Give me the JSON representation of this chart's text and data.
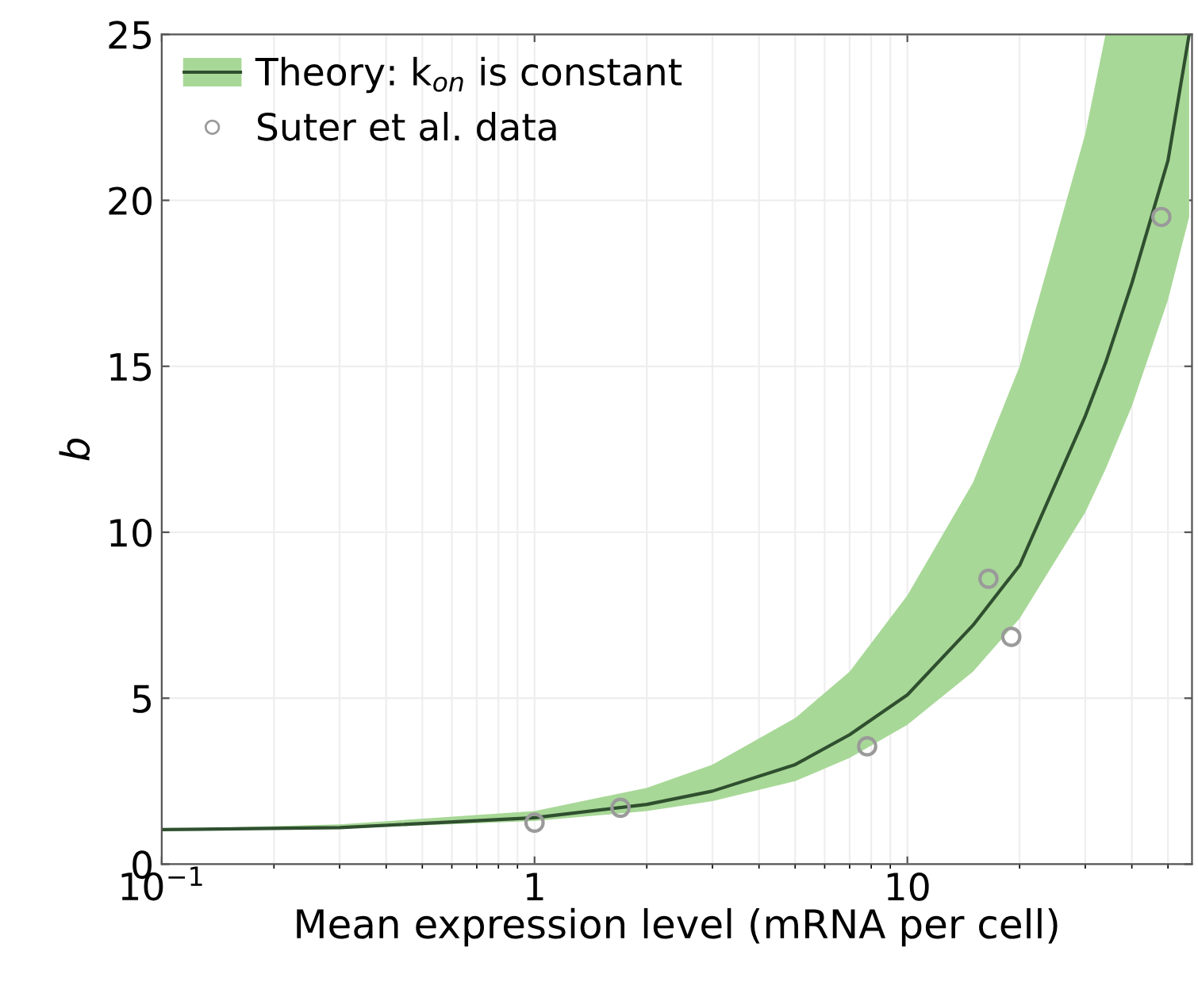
{
  "chart_data": {
    "type": "line",
    "xlabel": "Mean expression level (mRNA per cell)",
    "ylabel": "b",
    "log": "x",
    "xlim": [
      0.1,
      58
    ],
    "xticks": [
      {
        "value": 0.1,
        "label": "10$^{−1}$"
      },
      1,
      10
    ],
    "ylim": [
      0,
      25
    ],
    "yticks": [
      0,
      5,
      10,
      15,
      20,
      25
    ],
    "grid": true,
    "legend": "top left",
    "series": [
      {
        "name": "Theory: k$_{on}$ is constant",
        "color": "#2f4f2f",
        "x": [
          0.1,
          0.3,
          1,
          2,
          3,
          5,
          7,
          10,
          15,
          20,
          30,
          34,
          40,
          50,
          57
        ],
        "lower": [
          1.03,
          1.07,
          1.3,
          1.6,
          1.9,
          2.5,
          3.2,
          4.2,
          5.8,
          7.4,
          10.6,
          11.9,
          13.8,
          17.0,
          19.5
        ],
        "upper": [
          1.05,
          1.2,
          1.6,
          2.3,
          3.0,
          4.4,
          5.8,
          8.1,
          11.5,
          15.0,
          22.0,
          25,
          25,
          25,
          25
        ],
        "values": [
          1.04,
          1.1,
          1.4,
          1.8,
          2.2,
          3.0,
          3.9,
          5.1,
          7.2,
          9.0,
          13.5,
          15.1,
          17.5,
          21.2,
          25
        ]
      },
      {
        "name": "Suter et al. data",
        "type": "scatter",
        "color": "#9a9a9a",
        "marker": "circle",
        "x": [
          1,
          1.7,
          7.8,
          16.5,
          19,
          48
        ],
        "values": [
          1.25,
          1.7,
          3.55,
          8.6,
          6.85,
          19.5
        ]
      }
    ]
  }
}
